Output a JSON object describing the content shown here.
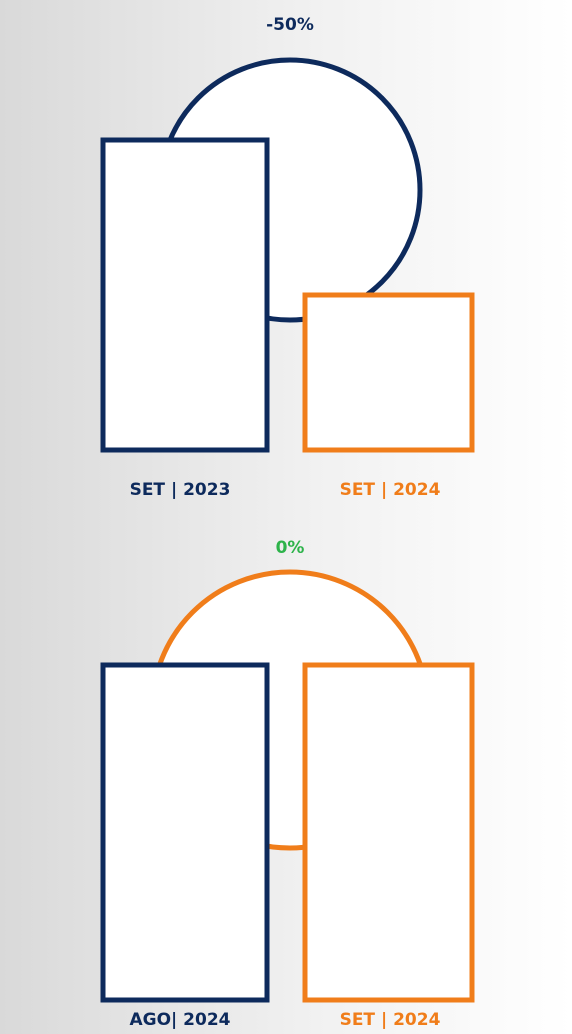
{
  "chart_data": [
    {
      "type": "bar",
      "change_label": "-50%",
      "change_color": "#0d2a5c",
      "ring_color": "#0d2a5c",
      "categories": [
        "SET | 2023",
        "SET | 2024"
      ],
      "values": [
        2,
        1
      ],
      "colors": [
        "#0d2a5c",
        "#f07d1a"
      ]
    },
    {
      "type": "bar",
      "change_label": "0%",
      "change_color": "#2db34a",
      "ring_color": "#f07d1a",
      "categories": [
        "AGO| 2024",
        "SET | 2024"
      ],
      "values": [
        1,
        1
      ],
      "colors": [
        "#0d2a5c",
        "#f07d1a"
      ]
    }
  ]
}
